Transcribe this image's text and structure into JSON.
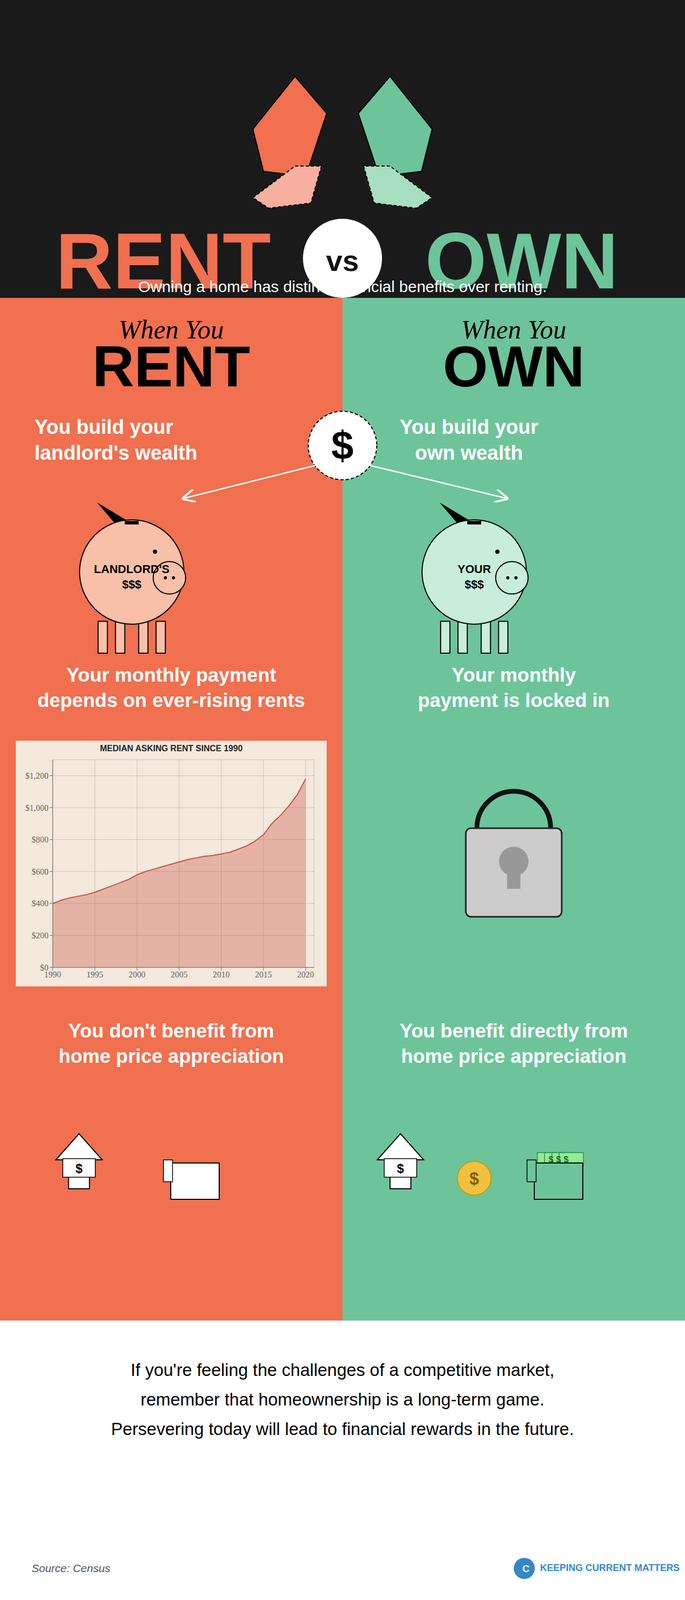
{
  "chart_data": {
    "type": "area",
    "title": "MEDIAN ASKING RENT SINCE 1990",
    "x": [
      1990,
      1991,
      1992,
      1993,
      1994,
      1995,
      1996,
      1997,
      1998,
      1999,
      2000,
      2001,
      2002,
      2003,
      2004,
      2005,
      2006,
      2007,
      2008,
      2009,
      2010,
      2011,
      2012,
      2013,
      2014,
      2015,
      2016,
      2017,
      2018,
      2019,
      2020
    ],
    "values": [
      400,
      420,
      435,
      445,
      455,
      470,
      490,
      510,
      530,
      550,
      580,
      600,
      615,
      630,
      645,
      660,
      675,
      685,
      695,
      700,
      710,
      720,
      740,
      760,
      790,
      830,
      900,
      950,
      1010,
      1080,
      1180
    ],
    "color": "#C85040",
    "xlim": [
      1990,
      2021
    ],
    "xticks": [
      1990,
      1995,
      2000,
      2005,
      2010,
      2015,
      2020
    ],
    "ylim": [
      0,
      1300
    ],
    "yticks": [
      {
        "value": 0,
        "label": "$0"
      },
      {
        "value": 200,
        "label": "$200"
      },
      {
        "value": 400,
        "label": "$400"
      },
      {
        "value": 600,
        "label": "$600"
      },
      {
        "value": 800,
        "label": "$800"
      },
      {
        "value": 1000,
        "label": "$1,000"
      },
      {
        "value": 1200,
        "label": "$1,200"
      }
    ],
    "grid": true,
    "annotations": [
      "RENT",
      "vs",
      "OWN",
      "Owning a home has distinct financial benefits over renting.",
      "When You",
      "RENT",
      "When You",
      "OWN",
      "$",
      "You build your\nlandlord's wealth",
      "You build your\nown wealth",
      "LANDLORD'S\n$$$",
      "YOUR\n$$$",
      "Your monthly payment\ndepends on ever-rising rents",
      "Your monthly\npayment is locked in",
      "You don't benefit from\nhome price appreciation",
      "You benefit directly from\nhome price appreciation",
      "$",
      "$",
      "$ $ $",
      "$",
      "If you're feeling the challenges of a competitive market,\nremember that homeownership is a long-term game.\nPersevering today will lead to financial rewards in the future.",
      "Source: Census",
      "C",
      "KEEPING CURRENT MATTERS"
    ]
  }
}
